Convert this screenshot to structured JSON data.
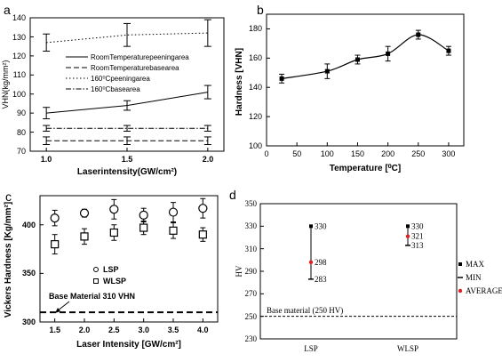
{
  "chart_data": [
    {
      "panel": "a",
      "type": "line",
      "xlabel": "Laserintensity(GW/cm²)",
      "ylabel": "VHN(kg/mm²)",
      "xlim": [
        0.9,
        2.1
      ],
      "ylim": [
        70,
        140
      ],
      "xticks": [
        "1.0",
        "1.5",
        "2.0"
      ],
      "yticks": [
        "70",
        "80",
        "90",
        "100",
        "110",
        "120",
        "130",
        "140"
      ],
      "x": [
        1.0,
        1.5,
        2.0
      ],
      "series": [
        {
          "name": "RoomTemperaturepeeningarea",
          "style": "solid",
          "values": [
            90,
            94,
            101
          ],
          "err": [
            3,
            2.5,
            3.5
          ]
        },
        {
          "name": "RoomTemperaturebasearea",
          "style": "dashed",
          "values": [
            75.5,
            75.5,
            75.5
          ],
          "err": [
            2,
            2,
            2
          ]
        },
        {
          "name": "160⁰Cpeeningarea",
          "style": "dotted",
          "values": [
            127,
            131,
            132
          ],
          "err": [
            4.5,
            6,
            7
          ]
        },
        {
          "name": "160⁰Cbasearea",
          "style": "dashdot",
          "values": [
            82,
            82,
            82
          ],
          "err": [
            1.5,
            1.5,
            1.5
          ]
        }
      ]
    },
    {
      "panel": "b",
      "type": "line",
      "xlabel": "Temperature [⁰C]",
      "ylabel": "Hardness [VHN]",
      "xlim": [
        0,
        325
      ],
      "ylim": [
        100,
        190
      ],
      "xticks": [
        "0",
        "50",
        "100",
        "150",
        "200",
        "250",
        "300"
      ],
      "yticks": [
        "100",
        "120",
        "140",
        "160",
        "180"
      ],
      "x": [
        25,
        100,
        150,
        200,
        250,
        300
      ],
      "values": [
        146,
        151,
        159,
        163,
        176,
        165
      ],
      "err": [
        3,
        5,
        3,
        5,
        3,
        3
      ]
    },
    {
      "panel": "c",
      "type": "scatter",
      "xlabel": "Laser Intensity [GW/cm²]",
      "ylabel": "Vickers Hardness [Kg/mm²]",
      "xlim": [
        1.25,
        4.25
      ],
      "ylim": [
        300,
        430
      ],
      "xticks": [
        "1.5",
        "2.0",
        "2.5",
        "3.0",
        "3.5",
        "4.0"
      ],
      "yticks": [
        "300",
        "350",
        "400"
      ],
      "x": [
        1.5,
        2.0,
        2.5,
        3.0,
        3.5,
        4.0
      ],
      "series": [
        {
          "name": "LSP",
          "marker": "circle",
          "values": [
            407,
            412,
            416,
            410,
            413,
            417
          ],
          "err": [
            8,
            4,
            10,
            7,
            10,
            10
          ]
        },
        {
          "name": "WLSP",
          "marker": "square",
          "values": [
            380,
            388,
            392,
            397,
            394,
            390
          ],
          "err": [
            10,
            8,
            8,
            7,
            8,
            7
          ]
        }
      ],
      "reference_line": {
        "label": "Base Material 310 VHN",
        "value": 310
      }
    },
    {
      "panel": "d",
      "type": "scatter",
      "ylabel": "HV",
      "categories": [
        "LSP",
        "WLSP"
      ],
      "ylim": [
        230,
        350
      ],
      "yticks": [
        "230",
        "250",
        "270",
        "290",
        "310",
        "330",
        "350"
      ],
      "max": [
        330,
        330
      ],
      "min": [
        283,
        313
      ],
      "average": [
        298,
        321
      ],
      "max_labels": [
        "330",
        "330"
      ],
      "min_labels": [
        "283",
        "313"
      ],
      "average_labels": [
        "298",
        "321"
      ],
      "legend": [
        "MAX",
        "MIN",
        "AVERAGE"
      ],
      "reference_line": {
        "label": "Base material (250 HV)",
        "value": 250
      }
    }
  ],
  "panel_labels": [
    "a",
    "b",
    "c",
    "d"
  ],
  "colors": {
    "average": "#e02020",
    "line": "#000000"
  }
}
